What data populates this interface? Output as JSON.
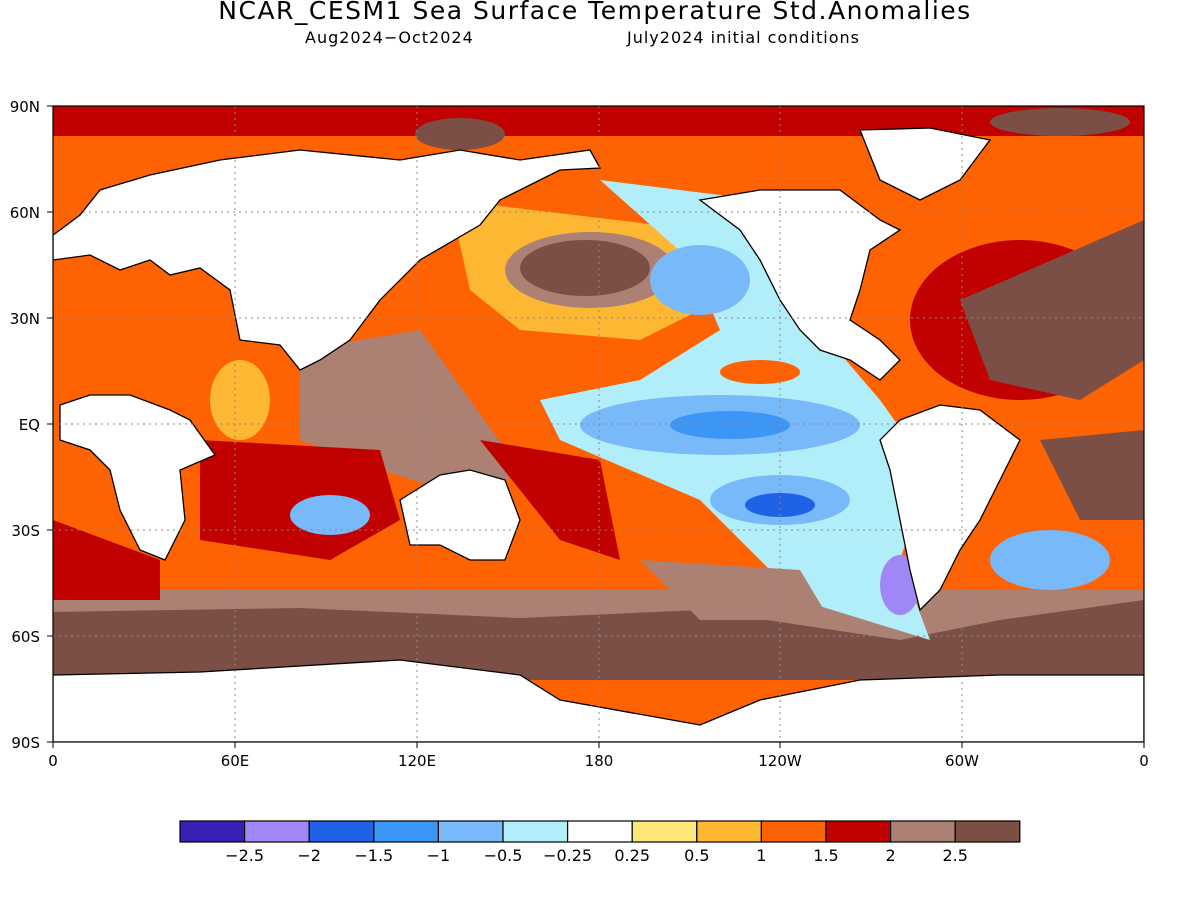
{
  "title": "NCAR_CESM1 Sea Surface Temperature Std.Anomalies",
  "subtitle_left": "Aug2024−Oct2024",
  "subtitle_right": "July2024 initial conditions",
  "lat_labels": [
    "90N",
    "60N",
    "30N",
    "EQ",
    "30S",
    "60S",
    "90S"
  ],
  "lon_labels": [
    "0",
    "60E",
    "120E",
    "180",
    "120W",
    "60W",
    "0"
  ],
  "colorbar": {
    "colors": [
      "#3a1fb4",
      "#a087f7",
      "#2062e6",
      "#3c96f5",
      "#78b9f9",
      "#b2eefa",
      "#ffffff",
      "#fee67a",
      "#feb732",
      "#ff6200",
      "#c10000",
      "#ac8173",
      "#7b4f45"
    ],
    "labels": [
      "−2.5",
      "−2",
      "−1.5",
      "−1",
      "−0.5",
      "−0.25",
      "0.25",
      "0.5",
      "1",
      "1.5",
      "2",
      "2.5"
    ]
  },
  "land_color": "#ffffff",
  "grid": "dotted"
}
